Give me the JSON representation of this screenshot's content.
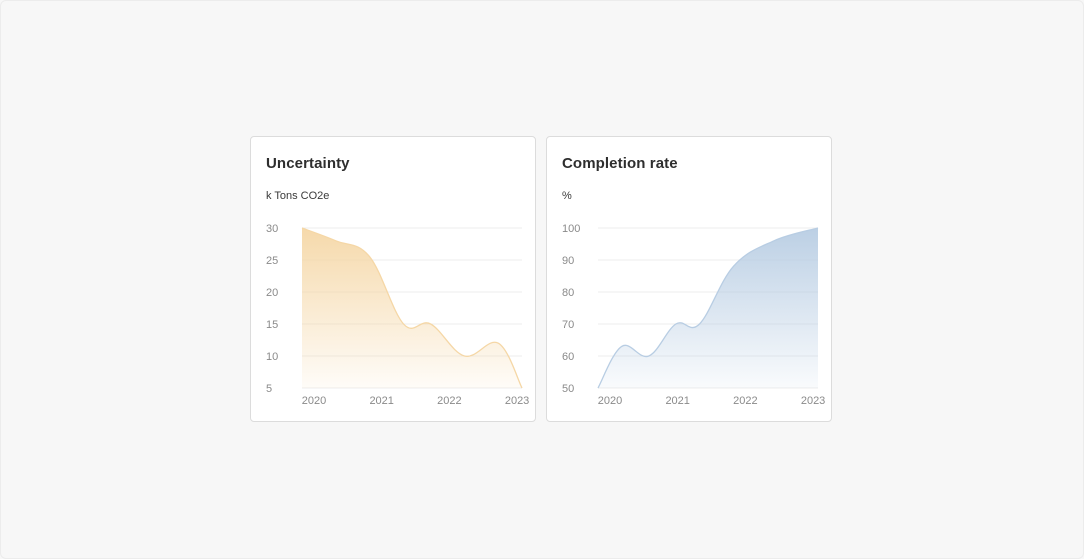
{
  "chart_data": [
    {
      "type": "area",
      "title": "Uncertainty",
      "ylabel": "k Tons CO2e",
      "xlabel": "",
      "categories": [
        "2020",
        "2021",
        "2022",
        "2023"
      ],
      "y_ticks": [
        30,
        25,
        20,
        15,
        10,
        5
      ],
      "ylim": [
        5,
        30
      ],
      "xlim": [
        2020.0,
        2023.25
      ],
      "grid": true,
      "color": "#f5d7a6",
      "series": [
        {
          "x": [
            2020.0,
            2020.5,
            2021.0,
            2021.5,
            2021.9,
            2022.4,
            2022.9,
            2023.25
          ],
          "values": [
            30,
            28,
            25.5,
            15,
            15,
            10,
            12,
            5
          ]
        }
      ]
    },
    {
      "type": "area",
      "title": "Completion rate",
      "ylabel": "%",
      "xlabel": "",
      "categories": [
        "2020",
        "2021",
        "2022",
        "2023"
      ],
      "y_ticks": [
        100,
        90,
        80,
        70,
        60,
        50
      ],
      "ylim": [
        50,
        100
      ],
      "xlim": [
        2020.0,
        2023.25
      ],
      "grid": true,
      "color": "#b8cde3",
      "series": [
        {
          "x": [
            2020.0,
            2020.35,
            2020.75,
            2021.15,
            2021.5,
            2022.0,
            2022.6,
            2023.25
          ],
          "values": [
            50,
            63,
            60,
            70,
            70,
            88,
            96,
            100
          ]
        }
      ]
    }
  ]
}
